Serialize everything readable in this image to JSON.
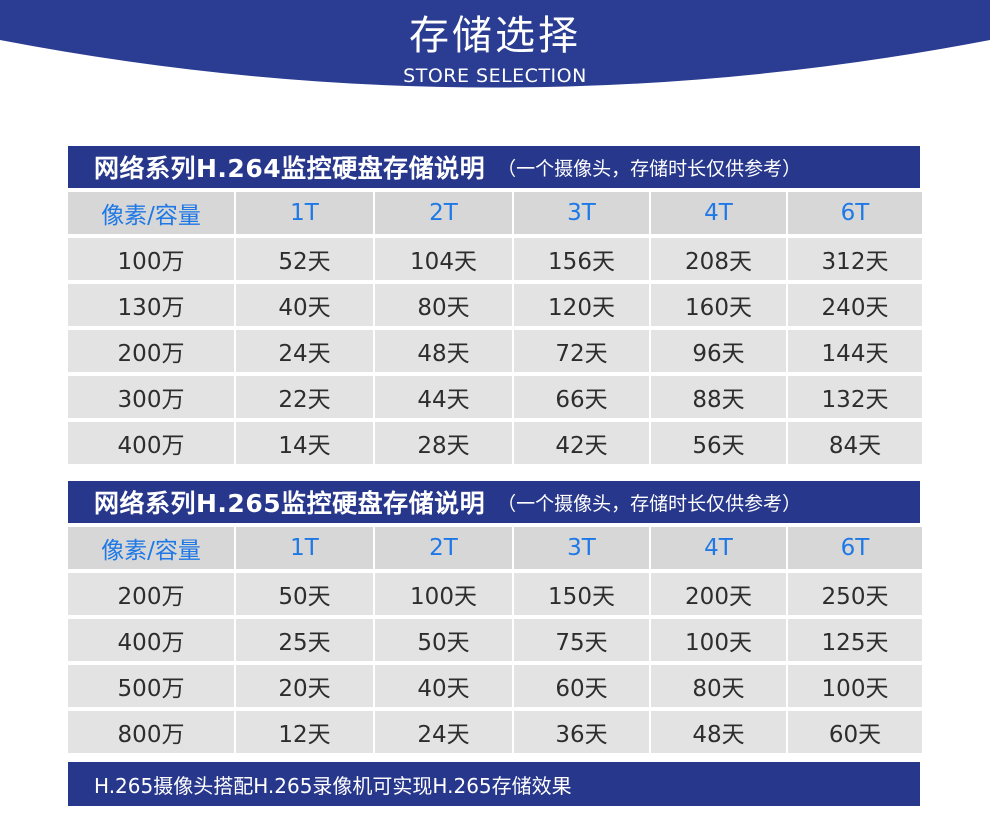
{
  "header": {
    "title": "存储选择",
    "subtitle": "STORE SELECTION"
  },
  "tables": [
    {
      "title": "网络系列H.264监控硬盘存储说明",
      "note": "（一个摄像头，存储时长仅供参考）",
      "columns": [
        "像素/容量",
        "1T",
        "2T",
        "3T",
        "4T",
        "6T"
      ],
      "rows": [
        [
          "100万",
          "52天",
          "104天",
          "156天",
          "208天",
          "312天"
        ],
        [
          "130万",
          "40天",
          "80天",
          "120天",
          "160天",
          "240天"
        ],
        [
          "200万",
          "24天",
          "48天",
          "72天",
          "96天",
          "144天"
        ],
        [
          "300万",
          "22天",
          "44天",
          "66天",
          "88天",
          "132天"
        ],
        [
          "400万",
          "14天",
          "28天",
          "42天",
          "56天",
          "84天"
        ]
      ]
    },
    {
      "title": "网络系列H.265监控硬盘存储说明",
      "note": "（一个摄像头，存储时长仅供参考）",
      "columns": [
        "像素/容量",
        "1T",
        "2T",
        "3T",
        "4T",
        "6T"
      ],
      "rows": [
        [
          "200万",
          "50天",
          "100天",
          "150天",
          "200天",
          "250天"
        ],
        [
          "400万",
          "25天",
          "50天",
          "75天",
          "100天",
          "125天"
        ],
        [
          "500万",
          "20天",
          "40天",
          "60天",
          "80天",
          "100天"
        ],
        [
          "800万",
          "12天",
          "24天",
          "36天",
          "48天",
          "60天"
        ]
      ]
    }
  ],
  "footer": {
    "text": "H.265摄像头搭配H.265录像机可实现H.265存储效果"
  },
  "colors": {
    "navy": "#27378b",
    "header_blue": "#2b3d92",
    "column_header_text": "#1e78e6",
    "cell_bg": "#e3e3e3",
    "column_header_bg": "#d7d7d7"
  }
}
